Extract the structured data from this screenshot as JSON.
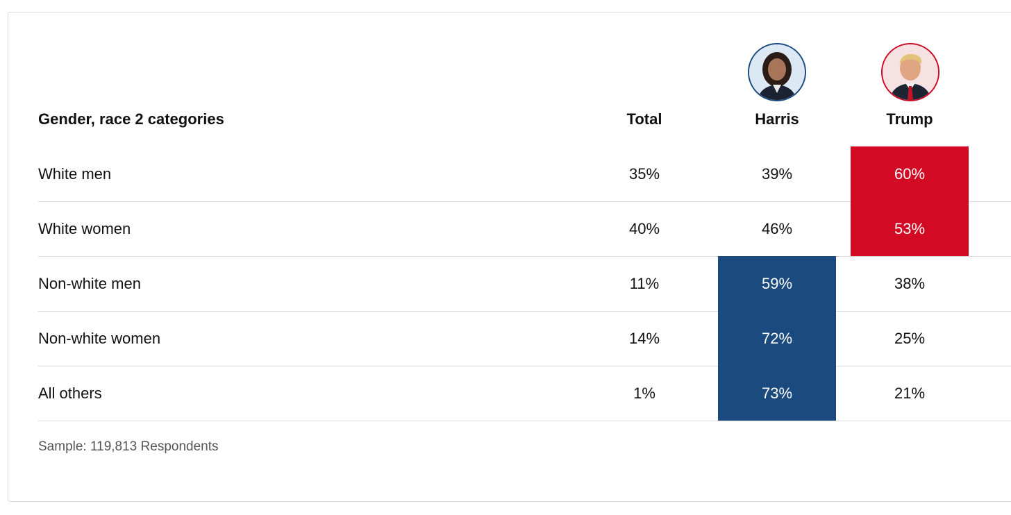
{
  "colors": {
    "harris_blue": "#1a4a7e",
    "trump_red": "#d20a24"
  },
  "icons": {
    "harris": "harris-portrait-icon",
    "trump": "trump-portrait-icon"
  },
  "chart_data": {
    "type": "table",
    "title": "Gender, race 2 categories",
    "columns": [
      "Total",
      "Harris",
      "Trump"
    ],
    "rows": [
      {
        "label": "White men",
        "total": "35%",
        "harris": "39%",
        "trump": "60%",
        "leader": "trump"
      },
      {
        "label": "White women",
        "total": "40%",
        "harris": "46%",
        "trump": "53%",
        "leader": "trump"
      },
      {
        "label": "Non-white men",
        "total": "11%",
        "harris": "59%",
        "trump": "38%",
        "leader": "harris"
      },
      {
        "label": "Non-white women",
        "total": "14%",
        "harris": "72%",
        "trump": "25%",
        "leader": "harris"
      },
      {
        "label": "All others",
        "total": "1%",
        "harris": "73%",
        "trump": "21%",
        "leader": "harris"
      }
    ],
    "sample": "Sample: 119,813 Respondents"
  }
}
